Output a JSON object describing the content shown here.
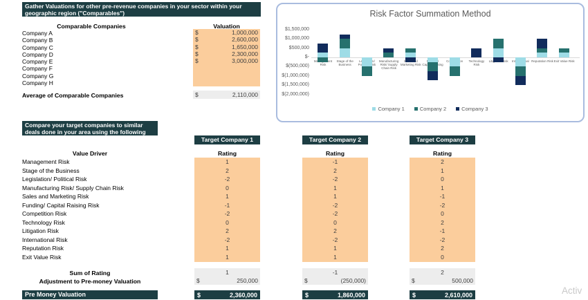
{
  "section1": {
    "header": "Gather Valuations for other pre-revenue companies in your sector within your geographic region (\"Comparables\")",
    "col_company": "Comparable Companies",
    "col_valuation": "Valuation",
    "companies": [
      {
        "name": "Company A",
        "currency": "$",
        "value": "1,000,000"
      },
      {
        "name": "Company B",
        "currency": "$",
        "value": "2,600,000"
      },
      {
        "name": "Company C",
        "currency": "$",
        "value": "1,650,000"
      },
      {
        "name": "Company D",
        "currency": "$",
        "value": "2,300,000"
      },
      {
        "name": "Company E",
        "currency": "$",
        "value": "3,000,000"
      },
      {
        "name": "Company F",
        "currency": "",
        "value": ""
      },
      {
        "name": "Company G",
        "currency": "",
        "value": ""
      },
      {
        "name": "Company H",
        "currency": "",
        "value": ""
      }
    ],
    "average_label": "Average of Comparable Companies",
    "average": {
      "currency": "$",
      "value": "2,110,000"
    }
  },
  "chart_data": {
    "type": "bar",
    "stacked": true,
    "title": "Risk Factor Summation Method",
    "categories": [
      "Management Risk",
      "Stage of the Business",
      "Legislation/ Political Risk",
      "Manufacturing Risk/ Supply Chain Risk",
      "Sales and Marketing Risk",
      "Funding/ Capital Raising Risk",
      "Competition Risk",
      "Technology Risk",
      "Litigation Risk",
      "International Risk",
      "Reputation Risk",
      "Exit Value Risk"
    ],
    "series": [
      {
        "name": "Company 1",
        "color": "#9edce6",
        "values": [
          250000,
          500000,
          -500000,
          0,
          250000,
          -250000,
          -500000,
          0,
          500000,
          -500000,
          250000,
          250000
        ]
      },
      {
        "name": "Company 2",
        "color": "#26716e",
        "values": [
          -250000,
          500000,
          -500000,
          250000,
          250000,
          -500000,
          -500000,
          0,
          500000,
          -500000,
          250000,
          250000
        ]
      },
      {
        "name": "Company 3",
        "color": "#112c5c",
        "values": [
          500000,
          250000,
          0,
          250000,
          -250000,
          -500000,
          0,
          500000,
          -250000,
          -500000,
          500000,
          0
        ]
      }
    ],
    "ylim": [
      -2000000,
      1500000
    ],
    "yticks": [
      {
        "label": "$1,500,000",
        "value": 1500000
      },
      {
        "label": "$1,000,000",
        "value": 1000000
      },
      {
        "label": "$500,000",
        "value": 500000
      },
      {
        "label": "$-",
        "value": 0
      },
      {
        "label": "$(500,000)",
        "value": -500000
      },
      {
        "label": "$(1,000,000)",
        "value": -1000000
      },
      {
        "label": "$(1,500,000)",
        "value": -1500000
      },
      {
        "label": "$(2,000,000)",
        "value": -2000000
      }
    ],
    "legend_position": "bottom",
    "grid": false
  },
  "section2": {
    "header": "Compare your target companies to similar deals done in your area using the following",
    "value_driver_label": "Value Driver",
    "rating_label": "Rating",
    "companies": [
      "Target Company 1",
      "Target Company 2",
      "Target Company 3"
    ],
    "drivers": [
      "Management Risk",
      "Stage of the Business",
      "Legislation/ Political Risk",
      "Manufacturing Risk/ Supply Chain Risk",
      "Sales and Marketing Risk",
      "Funding/ Capital Raising Risk",
      "Competition Risk",
      "Technology Risk",
      "Litigation Risk",
      "International Risk",
      "Reputation Risk",
      "Exit Value Risk"
    ],
    "ratings": [
      [
        1,
        2,
        -2,
        0,
        1,
        -1,
        -2,
        0,
        2,
        -2,
        1,
        1
      ],
      [
        -1,
        2,
        -2,
        1,
        1,
        -2,
        -2,
        0,
        2,
        -2,
        1,
        1
      ],
      [
        2,
        1,
        0,
        1,
        -1,
        -2,
        0,
        2,
        -1,
        -2,
        2,
        0
      ]
    ],
    "sum_label": "Sum of Rating",
    "adjustment_label": "Adjustment to Pre-money Valuation",
    "sums": [
      "1",
      "-1",
      "2"
    ],
    "adjustments": [
      {
        "currency": "$",
        "value": "250,000"
      },
      {
        "currency": "$",
        "value": "(250,000)"
      },
      {
        "currency": "$",
        "value": "500,000"
      }
    ],
    "premoney_label": "Pre Money Valuation",
    "premoney": [
      {
        "currency": "$",
        "value": "2,360,000"
      },
      {
        "currency": "$",
        "value": "1,860,000"
      },
      {
        "currency": "$",
        "value": "2,610,000"
      }
    ]
  },
  "colors": {
    "banner_teal": "#1d3e43",
    "input_orange": "#fbcd9c",
    "computed_gray": "#ededed",
    "chart_border": "#a9bcdf",
    "chart_text": "#595959",
    "series1": "#9edce6",
    "series2": "#26716e",
    "series3": "#112c5c"
  },
  "watermark": "Activ"
}
